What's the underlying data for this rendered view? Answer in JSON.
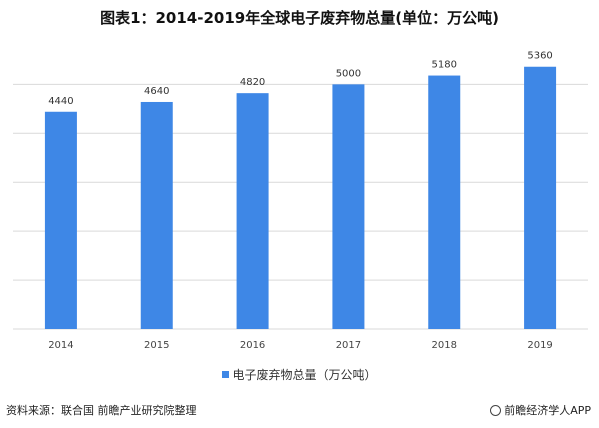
{
  "title": "图表1：2014-2019年全球电子废弃物总量(单位：万公吨)",
  "chart_data": {
    "type": "bar",
    "categories": [
      "2014",
      "2015",
      "2016",
      "2017",
      "2018",
      "2019"
    ],
    "series": [
      {
        "name": "电子废弃物总量（万公吨）",
        "values": [
          4440,
          4640,
          4820,
          5000,
          5180,
          5360
        ]
      }
    ],
    "ylim": [
      0,
      5600
    ],
    "grid": true,
    "legend_position": "bottom",
    "bar_color": "#3e87e6",
    "grid_color": "#d9d9d9"
  },
  "footer": {
    "source": "资料来源：联合国 前瞻产业研究院整理",
    "brand": "前瞻经济学人APP",
    "brand_icon": "qianzhan-logo-icon"
  }
}
